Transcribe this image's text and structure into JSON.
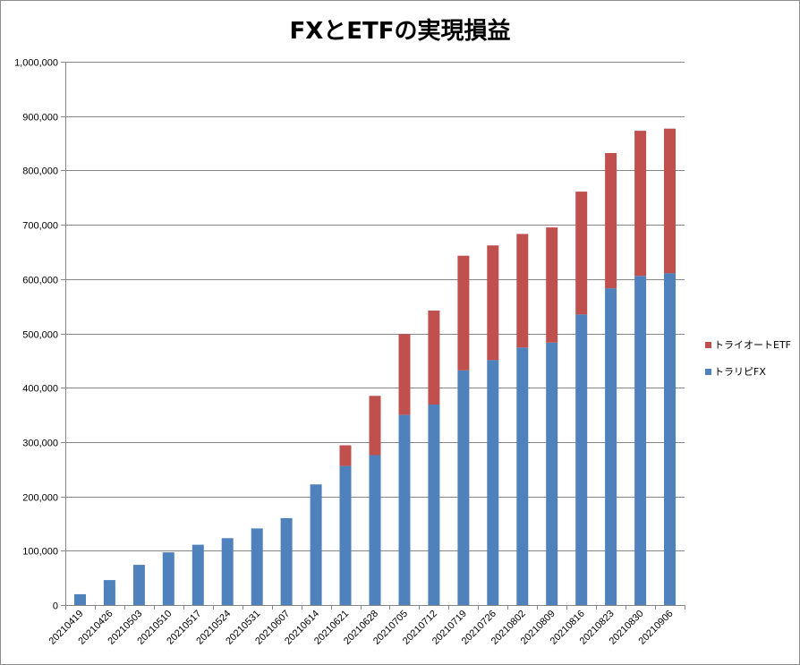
{
  "chart_data": {
    "type": "bar",
    "stacked": true,
    "title": "FXとETFの実現損益",
    "xlabel": "",
    "ylabel": "",
    "ylim": [
      0,
      1000000
    ],
    "yticks": [
      0,
      100000,
      200000,
      300000,
      400000,
      500000,
      600000,
      700000,
      800000,
      900000,
      1000000
    ],
    "ytick_labels": [
      "0",
      "100,000",
      "200,000",
      "300,000",
      "400,000",
      "500,000",
      "600,000",
      "700,000",
      "800,000",
      "900,000",
      "1,000,000"
    ],
    "grid": true,
    "legend_position": "right",
    "categories": [
      "20210419",
      "20210426",
      "20210503",
      "20210510",
      "20210517",
      "20210524",
      "20210531",
      "20210607",
      "20210614",
      "20210621",
      "20210628",
      "20210705",
      "20210712",
      "20210719",
      "20210726",
      "20210802",
      "20210809",
      "20210816",
      "20210823",
      "20210830",
      "20210906"
    ],
    "series": [
      {
        "name": "トラリピFX",
        "color": "#4f81bd",
        "values": [
          20000,
          46000,
          74000,
          97000,
          111000,
          123000,
          141000,
          160000,
          222000,
          256000,
          276000,
          350000,
          369000,
          432000,
          451000,
          474000,
          483000,
          535000,
          583000,
          606000,
          611000
        ]
      },
      {
        "name": "トライオートETF",
        "color": "#c0504d",
        "values": [
          0,
          0,
          0,
          0,
          0,
          0,
          0,
          0,
          0,
          38000,
          109000,
          149000,
          173000,
          211000,
          211000,
          209000,
          212000,
          226000,
          249000,
          267000,
          266000
        ]
      }
    ]
  }
}
